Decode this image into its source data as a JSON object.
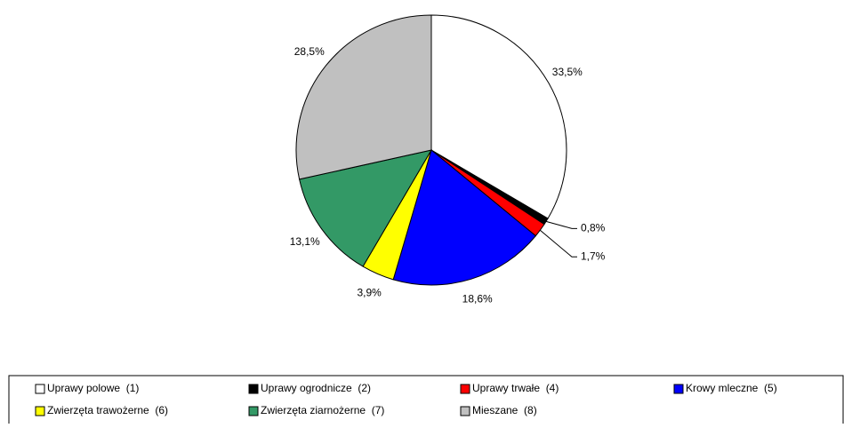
{
  "chart_data": {
    "type": "pie",
    "categories": [
      "Uprawy polowe  (1)",
      "Uprawy ogrodnicze  (2)",
      "Uprawy trwałe  (4)",
      "Krowy mleczne  (5)",
      "Zwierzęta trawożerne  (6)",
      "Zwierzęta ziarnożerne  (7)",
      "Mieszane  (8)"
    ],
    "values": [
      33.5,
      0.8,
      1.7,
      18.6,
      3.9,
      13.1,
      28.5
    ],
    "value_labels": [
      "33,5%",
      "0,8%",
      "1,7%",
      "18,6%",
      "3,9%",
      "13,1%",
      "28,5%"
    ],
    "colors": [
      "#ffffff",
      "#000000",
      "#ff0000",
      "#0000ff",
      "#ffff00",
      "#339966",
      "#c0c0c0"
    ],
    "legend": "bottom"
  }
}
